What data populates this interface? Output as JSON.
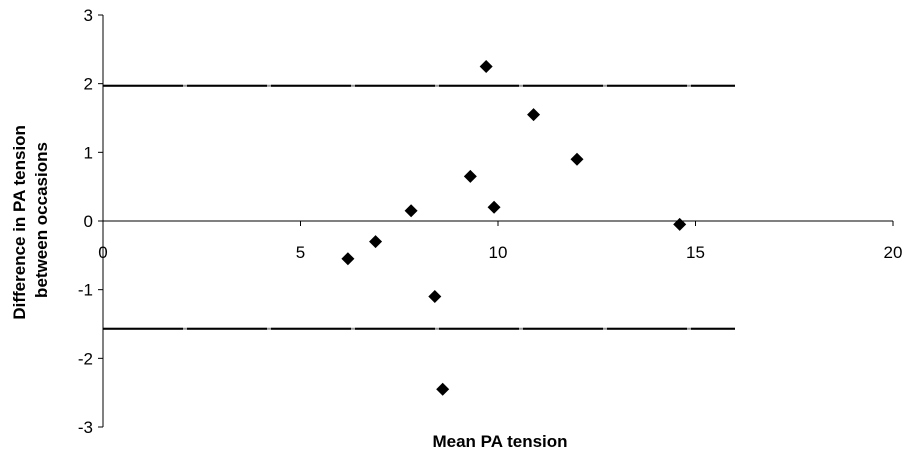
{
  "chart_data": {
    "type": "scatter",
    "title": "",
    "xlabel": "Mean PA  tension",
    "ylabel": [
      "Difference in PA tension",
      "between occasions"
    ],
    "xlim": [
      0,
      20
    ],
    "ylim": [
      -3,
      3
    ],
    "xticks": [
      0,
      5,
      10,
      15,
      20
    ],
    "yticks": [
      -3,
      -2,
      -1,
      0,
      1,
      2,
      3
    ],
    "grid": false,
    "legend": "none",
    "marker": "diamond",
    "colors": {
      "marker": "#000000",
      "line": "#000000",
      "line_dash": "#999999"
    },
    "series": [
      {
        "points": [
          {
            "x": 6.2,
            "y": -0.55
          },
          {
            "x": 6.9,
            "y": -0.3
          },
          {
            "x": 7.8,
            "y": 0.15
          },
          {
            "x": 8.4,
            "y": -1.1
          },
          {
            "x": 8.6,
            "y": -2.45
          },
          {
            "x": 9.3,
            "y": 0.65
          },
          {
            "x": 9.7,
            "y": 2.25
          },
          {
            "x": 9.9,
            "y": 0.2
          },
          {
            "x": 10.9,
            "y": 1.55
          },
          {
            "x": 12.0,
            "y": 0.9
          },
          {
            "x": 14.6,
            "y": -0.05
          }
        ]
      }
    ],
    "reference_lines": [
      {
        "y": 1.97,
        "x_from": 0,
        "x_to": 16
      },
      {
        "y": -1.57,
        "x_from": 0,
        "x_to": 16
      }
    ]
  }
}
